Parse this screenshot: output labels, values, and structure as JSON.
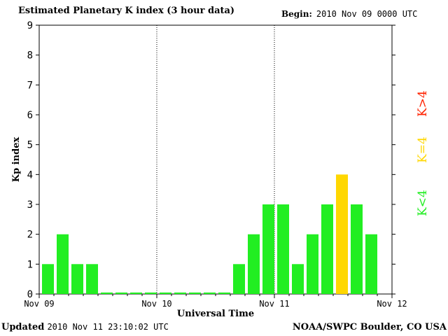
{
  "header": {
    "title": "Estimated Planetary K index (3 hour data)",
    "begin_label": "Begin:",
    "begin_value": "2010 Nov 09 0000 UTC"
  },
  "footer": {
    "updated_label": "Updated",
    "updated_value": "2010 Nov 11 23:10:02 UTC",
    "credit": "NOAA/SWPC Boulder, CO USA"
  },
  "legend": {
    "high": "K>4",
    "equal": "K=4",
    "low": "K<4"
  },
  "colors": {
    "low": "#22ee22",
    "equal": "#ffd700",
    "high": "#ff2200",
    "axis": "#000000"
  },
  "chart_data": {
    "type": "bar",
    "title": "Estimated Planetary K index (3 hour data)",
    "xlabel": "Universal Time",
    "ylabel": "Kp index",
    "ylim": [
      0,
      9
    ],
    "yticks": [
      0,
      1,
      2,
      3,
      4,
      5,
      6,
      7,
      8,
      9
    ],
    "xticks": [
      "Nov 09",
      "Nov 10",
      "Nov 11",
      "Nov 12"
    ],
    "day_separators": [
      "Nov 10",
      "Nov 11"
    ],
    "interval_hours": 3,
    "values": [
      1,
      2,
      1,
      1,
      0,
      0,
      0,
      0,
      0,
      0,
      0,
      0,
      0,
      1,
      2,
      3,
      3,
      1,
      2,
      3,
      4,
      3,
      2
    ]
  }
}
